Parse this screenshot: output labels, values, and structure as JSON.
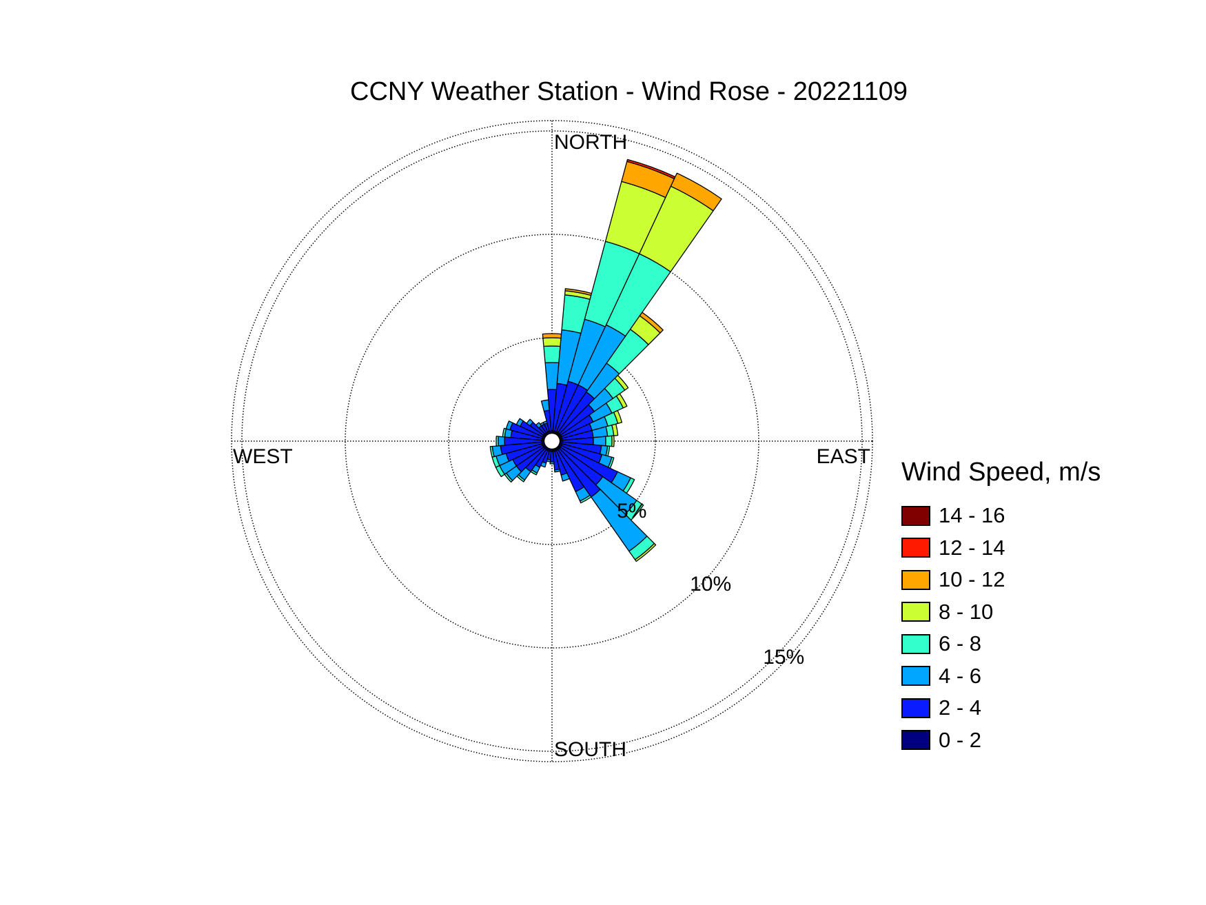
{
  "chart_data": {
    "type": "wind_rose",
    "title": "CCNY Weather Station - Wind Rose - 20221109",
    "direction_labels": {
      "north": "NORTH",
      "east": "EAST",
      "south": "SOUTH",
      "west": "WEST"
    },
    "radial_ticks": [
      5,
      10,
      15
    ],
    "radial_tick_labels": [
      "5%",
      "10%",
      "15%"
    ],
    "rmax": 15.5,
    "calm_hole": 0.4,
    "sector_width_deg": 10,
    "legend_title": "Wind Speed, m/s",
    "bins": [
      {
        "label": "0 - 2",
        "color": "#000080"
      },
      {
        "label": "2 - 4",
        "color": "#0a1cff"
      },
      {
        "label": "4 - 6",
        "color": "#00a6ff"
      },
      {
        "label": "6 - 8",
        "color": "#33ffcc"
      },
      {
        "label": "8 - 10",
        "color": "#ccff33"
      },
      {
        "label": "10 - 12",
        "color": "#ffa600"
      },
      {
        "label": "12 - 14",
        "color": "#ff1a00"
      },
      {
        "label": "14 - 16",
        "color": "#800000"
      }
    ],
    "sectors": [
      {
        "dir": 0,
        "cum": [
          0.5,
          2.5,
          3.8,
          4.6,
          5.0,
          5.2
        ]
      },
      {
        "dir": 10,
        "cum": [
          0.5,
          2.8,
          5.4,
          7.1,
          7.3,
          7.4
        ]
      },
      {
        "dir": 20,
        "cum": [
          0.5,
          3.0,
          6.1,
          10.0,
          13.0,
          14.0,
          14.1
        ]
      },
      {
        "dir": 30,
        "cum": [
          0.5,
          3.0,
          6.2,
          10.0,
          13.6,
          14.3
        ]
      },
      {
        "dir": 40,
        "cum": [
          0.5,
          2.9,
          4.6,
          6.6,
          7.4,
          7.6
        ]
      },
      {
        "dir": 50,
        "cum": [
          0.5,
          2.5,
          3.6,
          4.3,
          4.5
        ]
      },
      {
        "dir": 60,
        "cum": [
          0.5,
          2.2,
          3.2,
          3.8,
          4.0
        ]
      },
      {
        "dir": 70,
        "cum": [
          0.5,
          2.0,
          2.8,
          3.3,
          3.5
        ]
      },
      {
        "dir": 80,
        "cum": [
          0.5,
          2.0,
          2.7,
          3.0,
          3.2
        ]
      },
      {
        "dir": 90,
        "cum": [
          0.5,
          2.0,
          2.6,
          2.9,
          3.0
        ]
      },
      {
        "dir": 100,
        "cum": [
          0.5,
          2.4,
          2.7,
          2.8
        ]
      },
      {
        "dir": 110,
        "cum": [
          0.5,
          2.5,
          3.0,
          3.1
        ]
      },
      {
        "dir": 120,
        "cum": [
          0.5,
          3.5,
          4.2,
          4.4
        ]
      },
      {
        "dir": 130,
        "cum": [
          0.5,
          3.0,
          5.0,
          5.4
        ]
      },
      {
        "dir": 140,
        "cum": [
          0.5,
          3.3,
          6.5,
          7.0,
          7.1
        ]
      },
      {
        "dir": 150,
        "cum": [
          0.5,
          2.7,
          3.2,
          3.3
        ]
      },
      {
        "dir": 160,
        "cum": [
          0.5,
          1.7,
          2.0
        ]
      },
      {
        "dir": 170,
        "cum": [
          0.5,
          1.4,
          1.5
        ]
      },
      {
        "dir": 180,
        "cum": [
          0.5,
          1.0,
          1.1
        ]
      },
      {
        "dir": 190,
        "cum": [
          0.5,
          0.9,
          1.0
        ]
      },
      {
        "dir": 200,
        "cum": [
          0.5,
          1.1,
          1.3
        ]
      },
      {
        "dir": 210,
        "cum": [
          0.5,
          1.4,
          1.7,
          1.8
        ]
      },
      {
        "dir": 220,
        "cum": [
          0.5,
          1.8,
          2.3,
          2.4
        ]
      },
      {
        "dir": 230,
        "cum": [
          0.5,
          2.1,
          2.7,
          2.8
        ]
      },
      {
        "dir": 240,
        "cum": [
          0.5,
          2.1,
          2.8,
          3.0
        ]
      },
      {
        "dir": 250,
        "cum": [
          0.5,
          2.3,
          2.8,
          3.0
        ]
      },
      {
        "dir": 260,
        "cum": [
          0.5,
          2.5,
          2.9,
          3.0
        ]
      },
      {
        "dir": 270,
        "cum": [
          0.5,
          2.3,
          2.6,
          2.7
        ]
      },
      {
        "dir": 280,
        "cum": [
          0.5,
          2.0,
          2.3,
          2.4
        ]
      },
      {
        "dir": 290,
        "cum": [
          0.5,
          2.1,
          2.3
        ]
      },
      {
        "dir": 300,
        "cum": [
          0.5,
          1.7,
          1.9
        ]
      },
      {
        "dir": 310,
        "cum": [
          0.5,
          1.3,
          1.5
        ]
      },
      {
        "dir": 320,
        "cum": [
          0.5,
          0.9,
          1.1
        ]
      },
      {
        "dir": 330,
        "cum": [
          0.5,
          0.9,
          1.0
        ]
      },
      {
        "dir": 340,
        "cum": [
          0.5,
          0.9,
          1.0
        ]
      },
      {
        "dir": 350,
        "cum": [
          0.5,
          1.5,
          2.0
        ]
      }
    ]
  }
}
